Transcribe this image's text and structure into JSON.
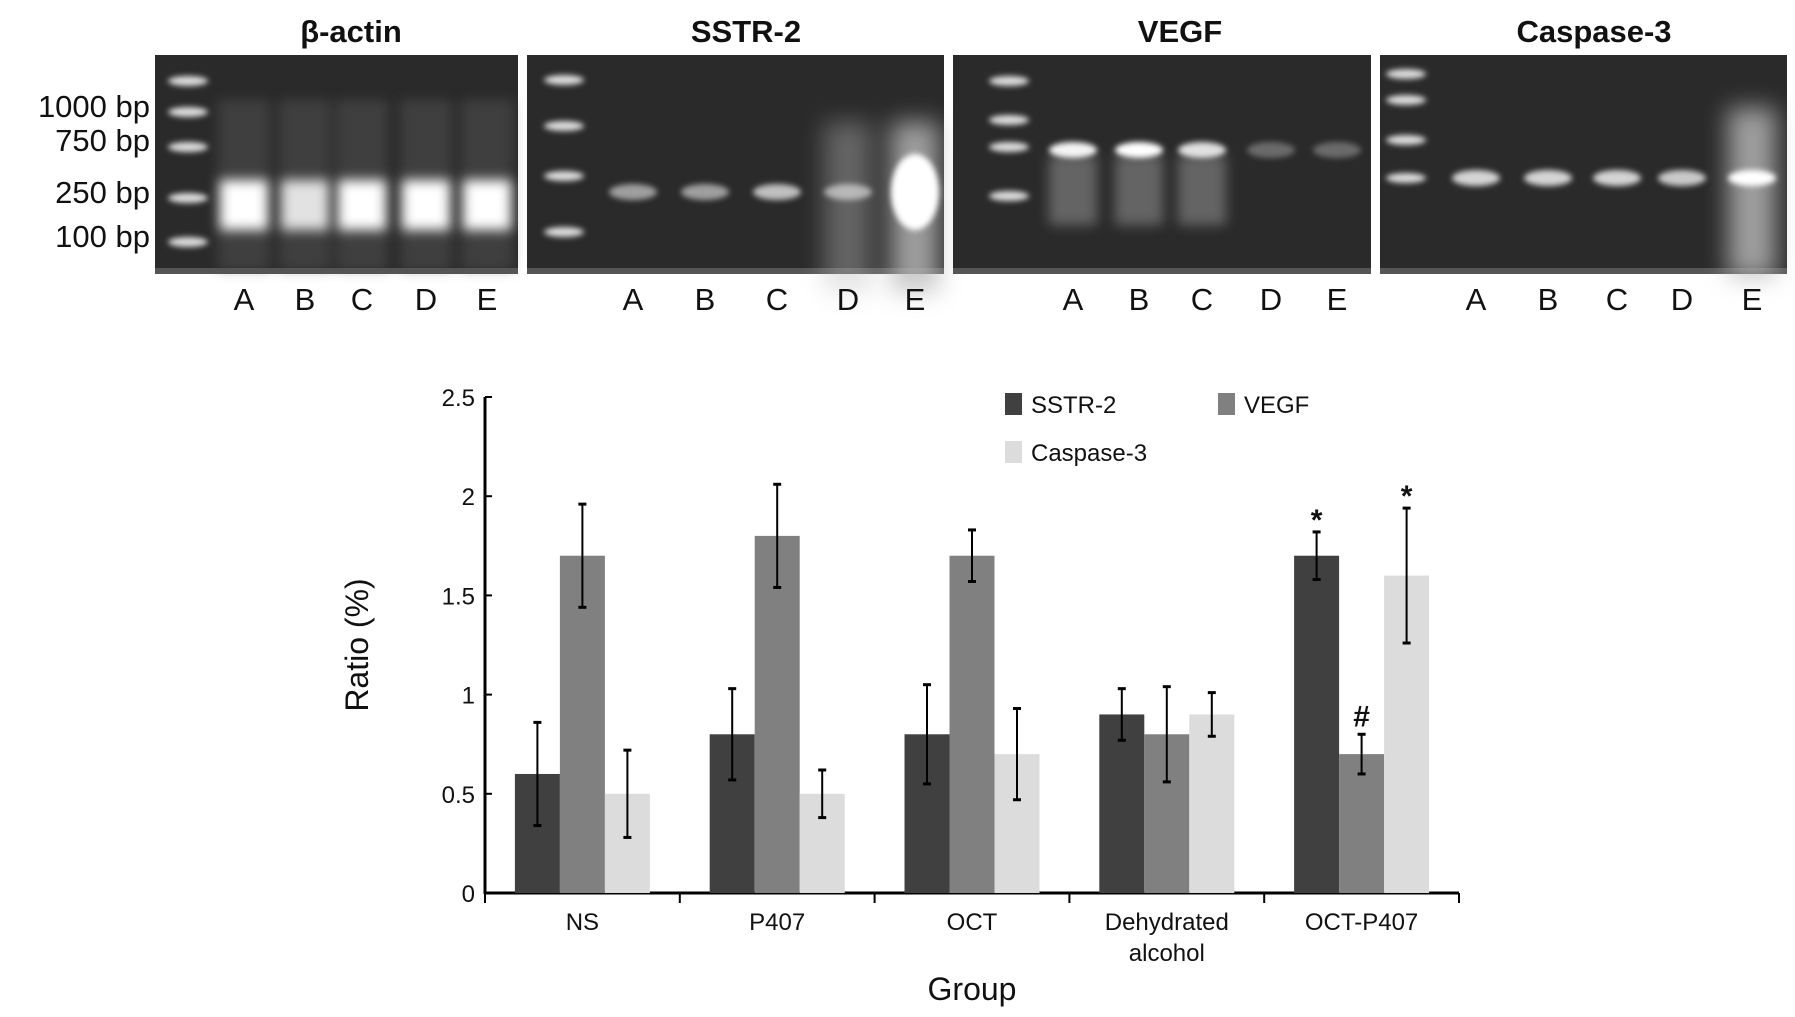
{
  "gels": [
    {
      "title": "β-actin",
      "lanes": [
        "A",
        "B",
        "C",
        "D",
        "E"
      ]
    },
    {
      "title": "SSTR-2",
      "lanes": [
        "A",
        "B",
        "C",
        "D",
        "E"
      ]
    },
    {
      "title": "VEGF",
      "lanes": [
        "A",
        "B",
        "C",
        "D",
        "E"
      ]
    },
    {
      "title": "Caspase-3",
      "lanes": [
        "A",
        "B",
        "C",
        "D",
        "E"
      ]
    }
  ],
  "marker_labels": [
    "1000 bp",
    "750 bp",
    "250 bp",
    "100 bp"
  ],
  "chart_data": {
    "type": "bar",
    "xlabel": "Group",
    "ylabel": "Ratio (%)",
    "ylim": [
      0,
      2.5
    ],
    "yticks": [
      "0",
      "0.5",
      "1",
      "1.5",
      "2",
      "2.5"
    ],
    "categories": [
      "NS",
      "P407",
      "OCT",
      "Dehydrated alcohol",
      "OCT-P407"
    ],
    "legend_position": "top-right",
    "grid": false,
    "series": [
      {
        "name": "SSTR-2",
        "color": "#404040",
        "values": [
          0.6,
          0.8,
          0.8,
          0.9,
          1.7
        ],
        "errors": [
          0.26,
          0.23,
          0.25,
          0.13,
          0.12
        ]
      },
      {
        "name": "VEGF",
        "color": "#808080",
        "values": [
          1.7,
          1.8,
          1.7,
          0.8,
          0.7
        ],
        "errors": [
          0.26,
          0.26,
          0.13,
          0.24,
          0.1
        ]
      },
      {
        "name": "Caspase-3",
        "color": "#dcdcdc",
        "values": [
          0.5,
          0.5,
          0.7,
          0.9,
          1.6
        ],
        "errors": [
          0.22,
          0.12,
          0.23,
          0.11,
          0.34
        ]
      }
    ],
    "annotations": [
      {
        "text": "*",
        "category": "OCT-P407",
        "series": "SSTR-2"
      },
      {
        "text": "#",
        "category": "OCT-P407",
        "series": "VEGF"
      },
      {
        "text": "*",
        "category": "OCT-P407",
        "series": "Caspase-3"
      }
    ]
  }
}
